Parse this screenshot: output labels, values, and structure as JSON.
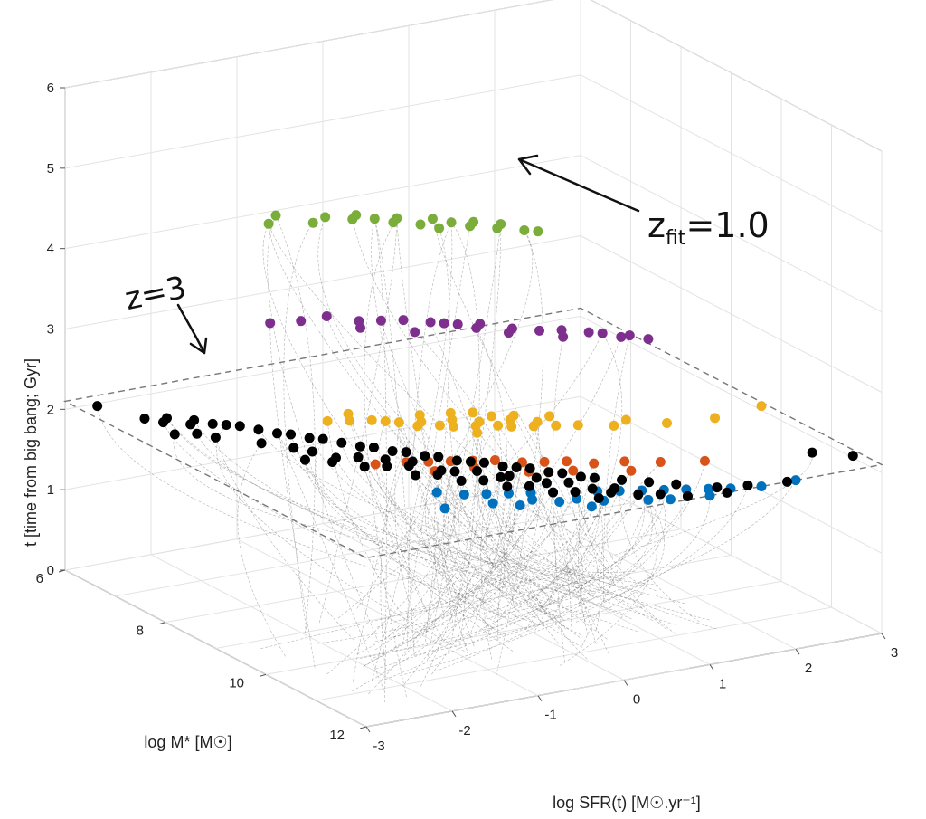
{
  "chart_data": {
    "type": "scatter",
    "dimensions": 3,
    "axes": {
      "x": {
        "label": "log SFR(t) [M☉.yr⁻¹]",
        "lim": [
          -3,
          3
        ],
        "ticks": [
          "-3",
          "-2",
          "-1",
          "0",
          "1",
          "2",
          "3"
        ]
      },
      "y": {
        "label": "log M* [M☉]",
        "lim": [
          6,
          12
        ],
        "ticks": [
          "6",
          "8",
          "10",
          "12"
        ]
      },
      "z": {
        "label": "t [time from big bang; Gyr]",
        "lim": [
          0,
          6
        ],
        "ticks": [
          "0",
          "1",
          "2",
          "3",
          "4",
          "5",
          "6"
        ]
      }
    },
    "grid": true,
    "planes": [
      {
        "label": "z=3",
        "t": 2.1
      },
      {
        "label": "z_fit=1.0",
        "t": 5.3
      }
    ],
    "annotations": {
      "z3_text": "z=3",
      "zfit_main": "z",
      "zfit_sub": "fit",
      "zfit_eq": "=1.0"
    },
    "series": [
      {
        "color": "#7aad3a",
        "t": 5.25,
        "points": [
          [
            -2.5,
            9.2
          ],
          [
            -2.3,
            9.0
          ],
          [
            -2.1,
            9.4
          ],
          [
            -1.9,
            9.3
          ],
          [
            -1.7,
            9.5
          ],
          [
            -1.5,
            9.6
          ],
          [
            -1.4,
            9.8
          ],
          [
            -1.3,
            9.7
          ],
          [
            -1.2,
            10.0
          ],
          [
            -1.0,
            9.9
          ],
          [
            -0.9,
            10.1
          ],
          [
            -0.8,
            10.3
          ],
          [
            -0.7,
            10.2
          ],
          [
            -0.6,
            10.5
          ],
          [
            -0.5,
            10.4
          ],
          [
            -0.4,
            10.7
          ],
          [
            -1.6,
            9.4
          ],
          [
            -1.1,
            10.2
          ],
          [
            -0.3,
            10.8
          ]
        ]
      },
      {
        "color": "#7e2f8e",
        "t": 4.1,
        "points": [
          [
            -2.6,
            9.4
          ],
          [
            -2.3,
            9.5
          ],
          [
            -2.0,
            9.5
          ],
          [
            -1.8,
            9.8
          ],
          [
            -1.6,
            9.9
          ],
          [
            -1.4,
            10.0
          ],
          [
            -1.2,
            10.2
          ],
          [
            -1.1,
            10.3
          ],
          [
            -1.0,
            10.4
          ],
          [
            -0.9,
            10.6
          ],
          [
            -0.8,
            10.5
          ],
          [
            -0.6,
            10.8
          ],
          [
            -0.4,
            11.0
          ],
          [
            -0.2,
            11.1
          ],
          [
            0.0,
            11.3
          ],
          [
            0.1,
            11.4
          ],
          [
            0.3,
            11.6
          ],
          [
            0.4,
            11.8
          ],
          [
            -1.5,
            10.4
          ],
          [
            -0.7,
            10.9
          ],
          [
            0.2,
            11.6
          ],
          [
            -1.9,
            10.0
          ],
          [
            -0.3,
            11.3
          ]
        ]
      },
      {
        "color": "#edb120",
        "t": 3.1,
        "points": [
          [
            -2.4,
            10.2
          ],
          [
            -2.2,
            10.3
          ],
          [
            -2.0,
            10.4
          ],
          [
            -1.9,
            10.5
          ],
          [
            -1.8,
            10.6
          ],
          [
            -1.7,
            10.8
          ],
          [
            -1.6,
            10.7
          ],
          [
            -1.5,
            10.9
          ],
          [
            -1.4,
            11.0
          ],
          [
            -1.3,
            10.8
          ],
          [
            -1.2,
            11.1
          ],
          [
            -1.1,
            11.0
          ],
          [
            -1.0,
            11.2
          ],
          [
            -0.9,
            11.3
          ],
          [
            -0.8,
            11.1
          ],
          [
            -0.7,
            11.4
          ],
          [
            -0.6,
            11.3
          ],
          [
            -0.5,
            11.5
          ],
          [
            -0.3,
            11.6
          ],
          [
            0.0,
            11.8
          ],
          [
            0.5,
            12.0
          ],
          [
            1.0,
            12.1
          ],
          [
            1.6,
            12.0
          ],
          [
            -1.5,
            10.5
          ],
          [
            -1.2,
            10.6
          ],
          [
            -0.9,
            10.9
          ],
          [
            -0.7,
            11.0
          ],
          [
            -2.1,
            10.1
          ],
          [
            -1.3,
            11.3
          ],
          [
            -0.4,
            11.2
          ],
          [
            0.2,
            11.7
          ],
          [
            -1.0,
            10.7
          ]
        ]
      },
      {
        "color": "#d95319",
        "t": 2.5,
        "points": [
          [
            -1.9,
            10.3
          ],
          [
            -1.6,
            10.4
          ],
          [
            -1.4,
            10.5
          ],
          [
            -1.2,
            10.6
          ],
          [
            -1.0,
            10.7
          ],
          [
            -0.8,
            10.8
          ],
          [
            -0.6,
            11.0
          ],
          [
            -0.4,
            11.1
          ],
          [
            -0.2,
            11.2
          ],
          [
            0.0,
            11.4
          ],
          [
            0.3,
            11.5
          ],
          [
            0.6,
            11.7
          ],
          [
            1.0,
            11.9
          ],
          [
            -1.5,
            10.8
          ],
          [
            -1.1,
            10.9
          ],
          [
            -0.7,
            11.3
          ],
          [
            -0.3,
            11.5
          ],
          [
            0.2,
            11.8
          ]
        ]
      },
      {
        "color": "#0072bd",
        "t": 2.1,
        "points": [
          [
            -1.3,
            10.5
          ],
          [
            -1.1,
            10.7
          ],
          [
            -0.9,
            10.8
          ],
          [
            -0.7,
            10.9
          ],
          [
            -0.5,
            11.0
          ],
          [
            -0.3,
            11.1
          ],
          [
            -0.1,
            11.2
          ],
          [
            0.1,
            11.3
          ],
          [
            0.3,
            11.4
          ],
          [
            0.5,
            11.5
          ],
          [
            0.7,
            11.6
          ],
          [
            0.9,
            11.7
          ],
          [
            1.1,
            11.8
          ],
          [
            1.3,
            11.9
          ],
          [
            1.6,
            12.0
          ],
          [
            2.0,
            12.0
          ],
          [
            -0.8,
            11.3
          ],
          [
            -0.4,
            11.4
          ],
          [
            0.0,
            11.6
          ],
          [
            0.4,
            11.8
          ],
          [
            0.8,
            11.9
          ],
          [
            -1.0,
            11.1
          ],
          [
            -0.6,
            11.2
          ],
          [
            -0.2,
            11.4
          ],
          [
            0.6,
            11.9
          ],
          [
            1.0,
            12.0
          ],
          [
            -1.5,
            11.0
          ],
          [
            -0.2,
            11.7
          ]
        ]
      },
      {
        "color": "#000000",
        "t": 2.1,
        "points": [
          [
            -2.8,
            6.3
          ],
          [
            -2.6,
            6.9
          ],
          [
            -2.5,
            7.1
          ],
          [
            -2.4,
            7.0
          ],
          [
            -2.3,
            7.3
          ],
          [
            -2.2,
            7.2
          ],
          [
            -2.1,
            7.4
          ],
          [
            -2.0,
            7.5
          ],
          [
            -1.9,
            7.6
          ],
          [
            -1.8,
            7.8
          ],
          [
            -1.7,
            8.0
          ],
          [
            -1.6,
            8.1
          ],
          [
            -1.5,
            8.3
          ],
          [
            -1.4,
            8.4
          ],
          [
            -1.3,
            8.6
          ],
          [
            -1.2,
            8.8
          ],
          [
            -1.1,
            8.9
          ],
          [
            -1.0,
            9.1
          ],
          [
            -0.9,
            9.2
          ],
          [
            -0.8,
            9.4
          ],
          [
            -0.7,
            9.5
          ],
          [
            -0.6,
            9.7
          ],
          [
            -0.5,
            9.8
          ],
          [
            -0.4,
            9.9
          ],
          [
            -0.3,
            10.1
          ],
          [
            -0.2,
            10.2
          ],
          [
            -0.1,
            10.3
          ],
          [
            0.0,
            10.5
          ],
          [
            0.1,
            10.6
          ],
          [
            0.2,
            10.8
          ],
          [
            0.3,
            10.9
          ],
          [
            0.5,
            11.1
          ],
          [
            0.7,
            11.3
          ],
          [
            0.9,
            11.5
          ],
          [
            1.2,
            11.8
          ],
          [
            1.5,
            11.9
          ],
          [
            1.9,
            12.0
          ],
          [
            2.6,
            11.3
          ],
          [
            2.9,
            11.6
          ],
          [
            -2.3,
            7.8
          ],
          [
            -2.0,
            8.2
          ],
          [
            -1.7,
            8.7
          ],
          [
            -1.4,
            9.1
          ],
          [
            -1.1,
            9.6
          ],
          [
            -0.8,
            10.0
          ],
          [
            -0.5,
            10.4
          ],
          [
            -0.2,
            10.8
          ],
          [
            0.1,
            11.2
          ],
          [
            0.4,
            11.6
          ],
          [
            -1.9,
            8.9
          ],
          [
            -1.5,
            9.4
          ],
          [
            -1.2,
            9.9
          ],
          [
            -0.9,
            10.3
          ],
          [
            -0.6,
            10.7
          ],
          [
            -0.3,
            11.1
          ],
          [
            0.0,
            11.5
          ],
          [
            -2.4,
            7.6
          ],
          [
            -1.6,
            9.0
          ],
          [
            -1.3,
            9.5
          ],
          [
            -1.0,
            10.0
          ],
          [
            -0.7,
            10.4
          ],
          [
            -0.4,
            10.8
          ],
          [
            -0.1,
            11.2
          ],
          [
            0.2,
            11.4
          ],
          [
            -2.6,
            7.5
          ],
          [
            -1.8,
            8.5
          ],
          [
            -1.2,
            9.3
          ],
          [
            -0.6,
            10.1
          ],
          [
            0.0,
            10.9
          ],
          [
            0.6,
            11.7
          ],
          [
            -1.0,
            9.5
          ],
          [
            -0.4,
            10.4
          ],
          [
            0.3,
            11.3
          ],
          [
            0.8,
            11.9
          ],
          [
            1.2,
            12.0
          ],
          [
            -1.7,
            9.1
          ],
          [
            -0.9,
            9.9
          ],
          [
            -0.2,
            10.6
          ]
        ]
      }
    ],
    "track_count": 150
  }
}
